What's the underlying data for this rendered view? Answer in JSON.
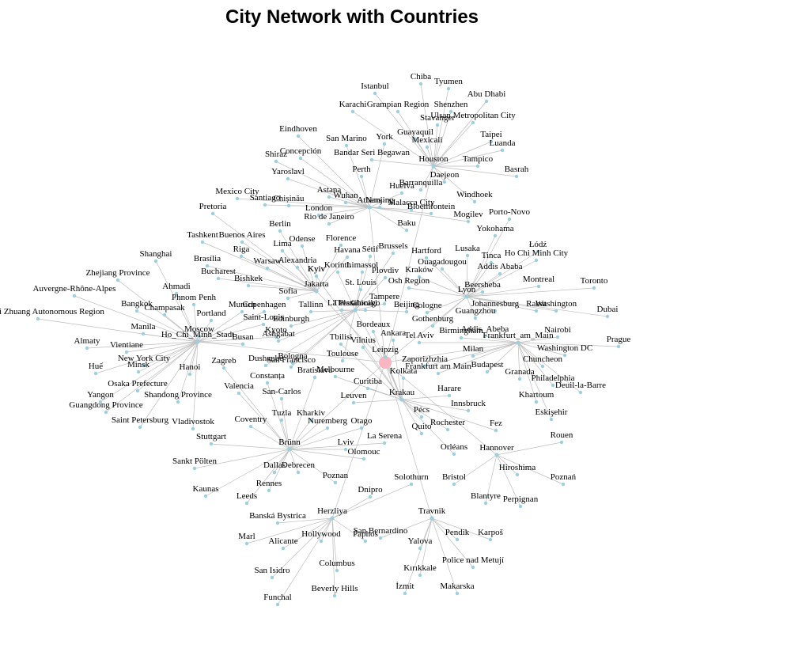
{
  "title": "City Network with Countries",
  "colors": {
    "center": "#f7b6c2",
    "hub": "#9ccfe0",
    "leaf": "#9ccfe0",
    "edge": "#bdbdbd"
  },
  "center": "",
  "hubs": [
    {
      "label": "Houston",
      "children": [
        "Istanbul",
        "Chiba",
        "Tyumen",
        "Karachi",
        "Grampian Region",
        "Shenzhen",
        "Abu Dhabi",
        "Stavanger",
        "Ulsan Metropolitan City",
        "Guayaquil",
        "Mexicali",
        "Taipei",
        "Luanda",
        "Tampico",
        "Basrah",
        "Bandar Seri Begawan",
        "Daejeon",
        "Barranquilla",
        "Windhoek"
      ]
    },
    {
      "label": "Athens",
      "children": [
        "Eindhoven",
        "San Marino",
        "York",
        "Concepción",
        "Shiraz",
        "Perth",
        "Yaroslavl",
        "Astana",
        "Wuhan",
        "Nanjing",
        "Huelva",
        "Malacca City",
        "Bloemfontein",
        "Mogilev",
        "Chișinău",
        "Santiago",
        "Mexico City",
        "London",
        "Rio de Janeiro",
        "Baku"
      ]
    },
    {
      "label": "Jakarta",
      "children": [
        "Pretoria",
        "Berlin",
        "Tashkent",
        "Buenos Aires",
        "Riga",
        "Brasília",
        "Warsaw",
        "Bucharest",
        "Bishkek",
        "Sofia",
        "Alexandria",
        "Kyiv",
        "Odense",
        "Lima",
        "Florence",
        "Havana"
      ]
    },
    {
      "label": "Ho_Chi_Minh_Stadt",
      "children": [
        "Shanghai",
        "Zhejiang Province",
        "Auvergne-Rhône-Alpes",
        "Ahmadi",
        "Bangkok",
        "Champasak",
        "Guangxi Zhuang Autonomous Region",
        "Phnom Penh",
        "Manila",
        "Portland",
        "Moscow",
        "Almaty",
        "Vientiane",
        "Huế",
        "Minsk",
        "New York City",
        "Osaka Prefecture",
        "Yangon",
        "Guangdong Province",
        "Shandong Province",
        "Saint Petersburg",
        "Vladivostok",
        "Busan",
        "Kyoto",
        "Munich",
        "Copenhagen",
        "Saint-Louis",
        "Hanoi"
      ]
    },
    {
      "label": "Lyon",
      "children": [
        "Lusaka",
        "Tinca",
        "Ouagadougou",
        "Addis Ababa",
        "Łódź",
        "Ho Chi Minh City",
        "Montreal",
        "Toronto",
        "Beersheba",
        "Johannesburg",
        "Rabat",
        "Washington",
        "Dubai",
        "Guangzhou",
        "Gothenburg",
        "Cologne",
        "Kraków",
        "Osh Region",
        "Hartford",
        "Porto-Novo",
        "Yokohama"
      ]
    },
    {
      "label": "Frankfurt_am_Main",
      "children": [
        "Nairobi",
        "Prague",
        "Washington DC",
        "Chuncheon",
        "Philadelphia",
        "Deuil-la-Barre",
        "Granada",
        "Khartoum",
        "Eskişehir",
        "Budapest",
        "Milan",
        "Addis_Abeba",
        "Birmingham",
        "Tel Aviv",
        "Frankfurt am Main",
        "Zaporizhzhia"
      ]
    },
    {
      "label": "Krakau",
      "children": [
        "Pécs",
        "Rochester",
        "Fez",
        "Quito",
        "Orléans",
        "Kyiv",
        "Innsbruck",
        "Harare",
        "Kolkata",
        "Curitiba",
        "Leuven",
        "Melbourne",
        "Bordeaux",
        "Ankara",
        "Leipzig",
        "Vilnius",
        "Tbilisi"
      ]
    },
    {
      "label": "Hannover",
      "children": [
        "Rouen",
        "Hiroshima",
        "Poznań",
        "Blantyre",
        "Perpignan",
        "Bristol"
      ]
    },
    {
      "label": "Brünn",
      "children": [
        "Coventry",
        "Tuzla",
        "Kharkiv",
        "Stuttgart",
        "Sankt Pölten",
        "Kaunas",
        "Dallas",
        "Debrecen",
        "Leeds",
        "Rennes",
        "Poznan",
        "Lviv",
        "Olomouc",
        "La Serena",
        "Nuremberg",
        "Otago",
        "San-Carlos",
        "Valencia",
        "Zagreb",
        "Bratislava",
        "Constanța"
      ]
    },
    {
      "label": "Herzliya",
      "children": [
        "Banská Bystrica",
        "Marl",
        "Alicante",
        "Hollywood",
        "Paphos",
        "San Isidro",
        "Columbus",
        "Funchal",
        "Beverly Hills",
        "Dnipro",
        "Solothurn"
      ]
    },
    {
      "label": "Travnik",
      "children": [
        "San Bernardino",
        "Pendik",
        "Karpoš",
        "Yalova",
        "Police nad Metují",
        "Kırıkkale",
        "İzmit",
        "Makarska"
      ]
    },
    {
      "label": "Thessaloniki",
      "children": [
        "Limassol",
        "Korinth",
        "Sétif",
        "Brussels",
        "Plovdiv",
        "Tampere",
        "Chicago",
        "La Plata",
        "Tallinn",
        "Edinburgh",
        "Ashgabat",
        "Bologna",
        "San Francisco",
        "Dushanbe",
        "Toulouse",
        "Beijing",
        "St. Louis"
      ]
    }
  ]
}
